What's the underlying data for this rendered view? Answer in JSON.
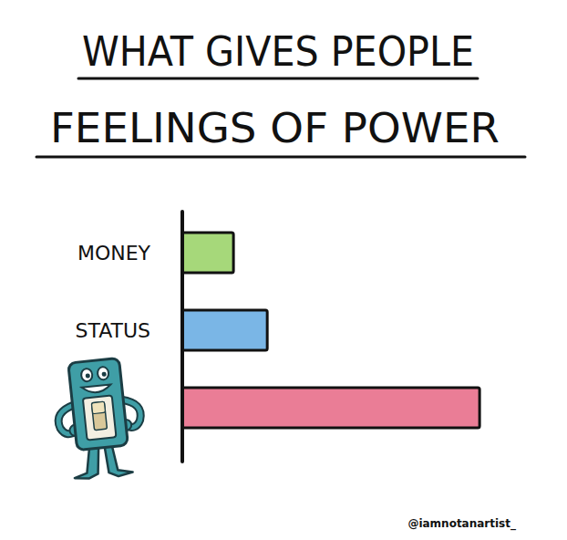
{
  "chart_data": {
    "type": "bar",
    "orientation": "horizontal",
    "title": "WHAT GIVES PEOPLE FEELINGS OF POWER",
    "categories": [
      "MONEY",
      "STATUS",
      null
    ],
    "values": [
      53,
      88,
      308
    ],
    "colors": [
      "#a6d87a",
      "#7ab6e6",
      "#ea7d96"
    ],
    "xlim": [
      0,
      340
    ],
    "tick_labels": false,
    "grid": false,
    "annotations": [
      "@iamnotanartist_"
    ]
  }
}
